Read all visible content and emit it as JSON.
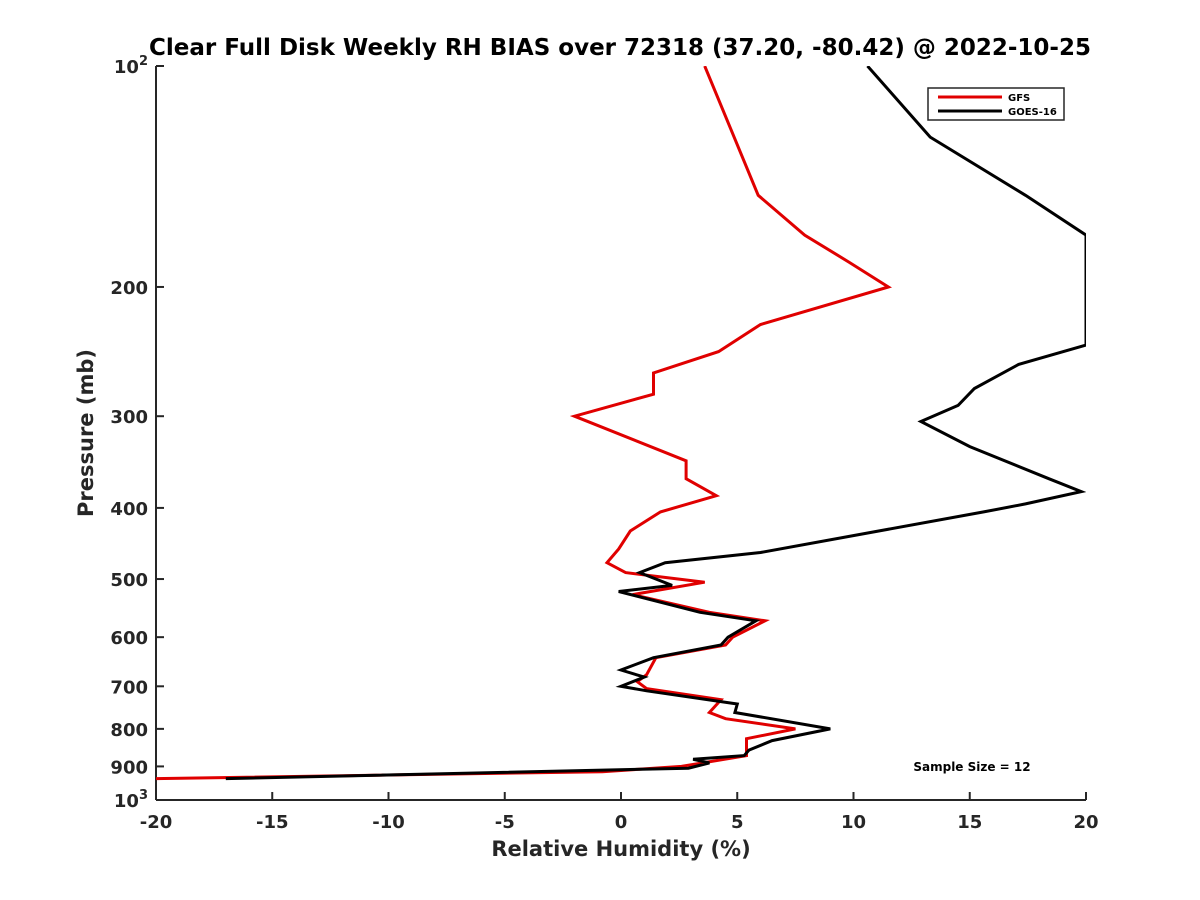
{
  "chart_data": {
    "type": "line",
    "title": "Clear Full Disk Weekly RH BIAS over 72318 (37.20, -80.42) @ 2022-10-25",
    "xlabel": "Relative Humidity (%)",
    "ylabel": "Pressure (mb)",
    "xlim": [
      -20,
      20
    ],
    "ylim": [
      100,
      1000
    ],
    "y_scale": "log",
    "y_reversed": true,
    "grid": false,
    "legend_position": "top-right",
    "x_ticks": [
      "-20",
      "-15",
      "-10",
      "-5",
      "0",
      "5",
      "10",
      "15",
      "20"
    ],
    "y_ticks": [
      {
        "value": 100,
        "base": "10",
        "exp": "2"
      },
      {
        "value": 200,
        "label": "200"
      },
      {
        "value": 300,
        "label": "300"
      },
      {
        "value": 400,
        "label": "400"
      },
      {
        "value": 500,
        "label": "500"
      },
      {
        "value": 600,
        "label": "600"
      },
      {
        "value": 700,
        "label": "700"
      },
      {
        "value": 800,
        "label": "800"
      },
      {
        "value": 900,
        "label": "900"
      },
      {
        "value": 1000,
        "base": "10",
        "exp": "3"
      }
    ],
    "annotation": "Sample Size = 12",
    "series": [
      {
        "name": "GFS",
        "color": "#e00000",
        "points": [
          [
            3.6,
            100
          ],
          [
            5.9,
            150
          ],
          [
            7.9,
            170
          ],
          [
            9.8,
            185
          ],
          [
            11.5,
            200
          ],
          [
            6.0,
            225
          ],
          [
            4.2,
            245
          ],
          [
            1.4,
            262
          ],
          [
            1.4,
            280
          ],
          [
            -2.0,
            300
          ],
          [
            2.8,
            345
          ],
          [
            2.8,
            365
          ],
          [
            4.1,
            385
          ],
          [
            1.7,
            405
          ],
          [
            0.4,
            430
          ],
          [
            -0.1,
            455
          ],
          [
            -0.6,
            475
          ],
          [
            0.2,
            490
          ],
          [
            3.6,
            505
          ],
          [
            0.5,
            525
          ],
          [
            3.8,
            555
          ],
          [
            6.2,
            570
          ],
          [
            4.8,
            600
          ],
          [
            4.5,
            615
          ],
          [
            1.5,
            640
          ],
          [
            1.1,
            675
          ],
          [
            0.7,
            690
          ],
          [
            1.1,
            705
          ],
          [
            4.3,
            730
          ],
          [
            3.8,
            760
          ],
          [
            4.5,
            775
          ],
          [
            7.5,
            800
          ],
          [
            5.4,
            825
          ],
          [
            5.4,
            870
          ],
          [
            2.6,
            900
          ],
          [
            -0.8,
            915
          ],
          [
            -20,
            935
          ]
        ]
      },
      {
        "name": "GOES-16",
        "color": "#000000",
        "points": [
          [
            10.6,
            100
          ],
          [
            13.3,
            125
          ],
          [
            17.4,
            150
          ],
          [
            20,
            170
          ],
          [
            20,
            240
          ],
          [
            17.1,
            255
          ],
          [
            15.2,
            275
          ],
          [
            14.5,
            290
          ],
          [
            12.9,
            305
          ],
          [
            15.0,
            330
          ],
          [
            18.4,
            365
          ],
          [
            19.8,
            380
          ],
          [
            17.4,
            395
          ],
          [
            15.6,
            405
          ],
          [
            6.0,
            460
          ],
          [
            1.9,
            475
          ],
          [
            0.8,
            490
          ],
          [
            2.2,
            510
          ],
          [
            -0.1,
            520
          ],
          [
            3.4,
            555
          ],
          [
            5.8,
            570
          ],
          [
            4.6,
            600
          ],
          [
            4.3,
            615
          ],
          [
            1.4,
            640
          ],
          [
            0.0,
            665
          ],
          [
            1.0,
            680
          ],
          [
            0.0,
            700
          ],
          [
            1.1,
            710
          ],
          [
            5.0,
            740
          ],
          [
            4.9,
            760
          ],
          [
            9.0,
            800
          ],
          [
            6.5,
            830
          ],
          [
            5.5,
            855
          ],
          [
            5.3,
            870
          ],
          [
            3.1,
            880
          ],
          [
            3.8,
            890
          ],
          [
            2.9,
            905
          ],
          [
            -17.0,
            935
          ]
        ]
      }
    ]
  }
}
